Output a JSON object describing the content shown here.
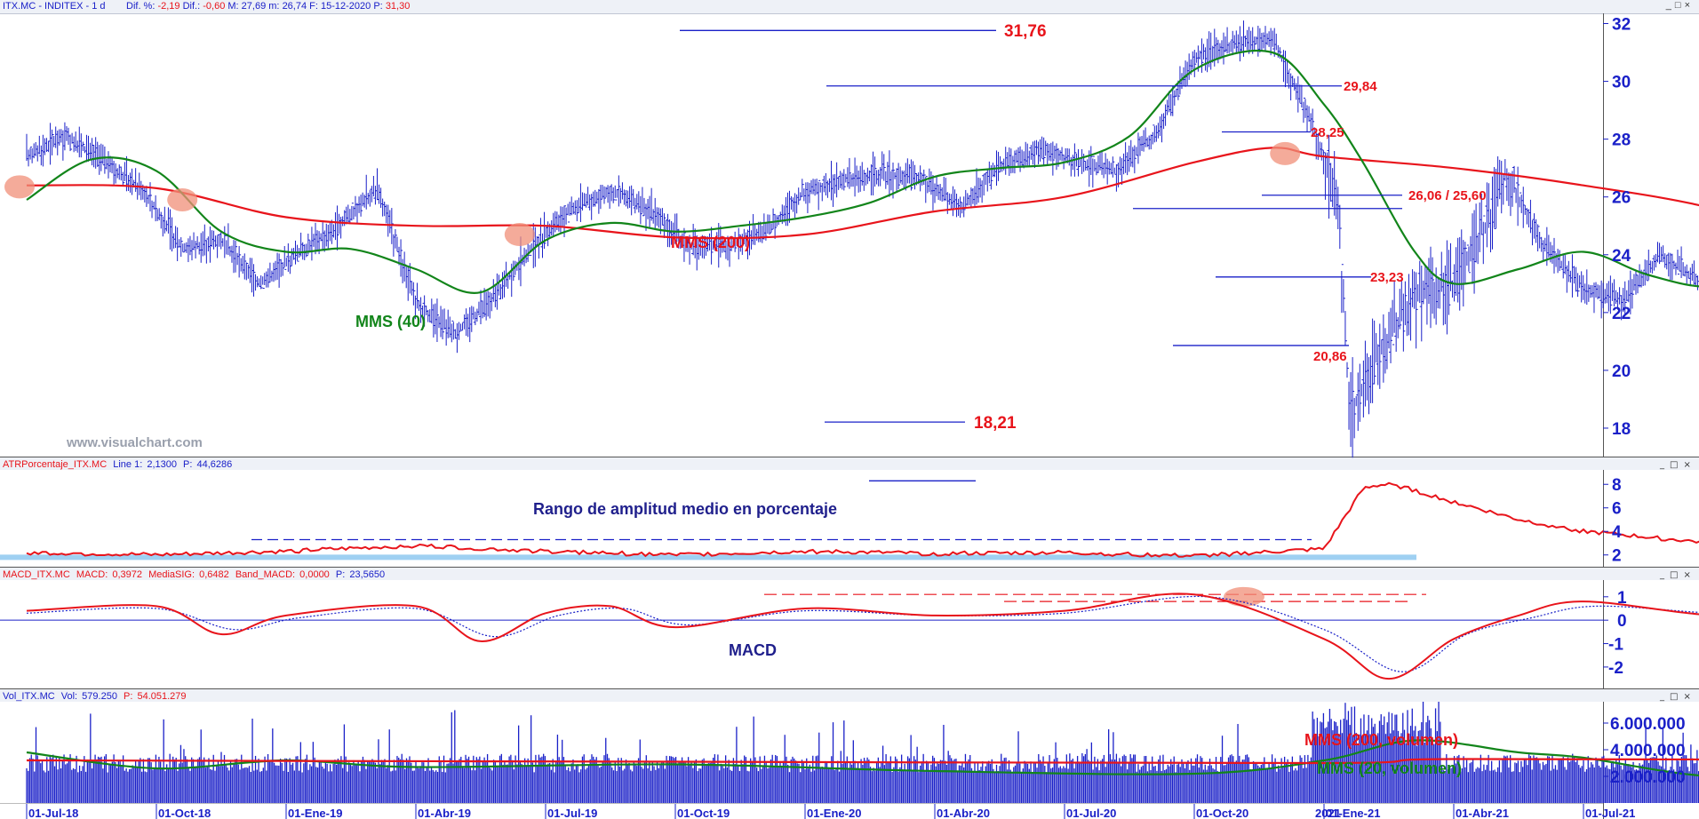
{
  "panels": {
    "price": {
      "header": {
        "symbol": "ITX.MC - INDITEX - 1 d",
        "diff_pct_label": "Dif. %:",
        "diff_pct": "-2,19",
        "diff_label": "Dif.:",
        "diff": "-0,60",
        "max_label": "M:",
        "max": "27,69",
        "min_label": "m:",
        "min": "26,74",
        "date_label": "F:",
        "date": "15-12-2020",
        "price_label": "P:",
        "price": "31,30"
      },
      "watermark": "www.visualchart.com",
      "labels": {
        "mms200": "MMS (200)",
        "mms40": "MMS (40)"
      }
    },
    "atr": {
      "header": {
        "name": "ATRPorcentaje_ITX.MC",
        "line_label": "Line 1:",
        "line_value": "2,1300",
        "p_label": "P:",
        "p_value": "44,6286"
      },
      "title": "Rango de amplitud medio en porcentaje"
    },
    "macd": {
      "header": {
        "name": "MACD_ITX.MC",
        "macd_label": "MACD:",
        "macd_value": "0,3972",
        "sig_label": "MediaSIG:",
        "sig_value": "0,6482",
        "band_label": "Band_MACD:",
        "band_value": "0,0000",
        "p_label": "P:",
        "p_value": "23,5650"
      },
      "title": "MACD"
    },
    "volume": {
      "header": {
        "name": "Vol_ITX.MC",
        "vol_label": "Vol:",
        "vol_value": "579.250",
        "p_label": "P:",
        "p_value": "54.051.279"
      },
      "labels": {
        "mms200": "MMS (200, volumen)",
        "mms20": "MMS (20, volumen)"
      }
    }
  },
  "window_controls": [
    "_",
    "□",
    "×"
  ],
  "colors": {
    "price_bars": "#1a20c8",
    "mms200": "#e8141b",
    "mms40": "#12851a",
    "axis_text": "#1a20c8",
    "annotation_red": "#e8141b",
    "annotation_navy": "#1f1f8c",
    "highlight": "#f08f78",
    "atr_band": "#9fd0f2"
  },
  "chart_data": [
    {
      "type": "line",
      "title": "",
      "x_ticks": [
        "01-Jul-18",
        "01-Oct-18",
        "01-Ene-19",
        "01-Abr-19",
        "01-Jul-19",
        "01-Oct-19",
        "01-Ene-20",
        "01-Abr-20",
        "01-Jul-20",
        "01-Oct-20",
        "01-Ene-21",
        "01-Abr-21",
        "01-Jul-21"
      ],
      "x_subtick": "2021",
      "ylim": [
        17.2,
        32.2
      ],
      "y_ticks": [
        18,
        20,
        22,
        24,
        26,
        28,
        30,
        32
      ],
      "series": [
        {
          "name": "",
          "style": "ohlc-bars",
          "points": [
            [
              0,
              27.4
            ],
            [
              0.3,
              28.1
            ],
            [
              0.6,
              27.2
            ],
            [
              0.9,
              26.2
            ],
            [
              1.2,
              24.2
            ],
            [
              1.5,
              24.5
            ],
            [
              1.8,
              23.0
            ],
            [
              2.1,
              24.1
            ],
            [
              2.4,
              25.0
            ],
            [
              2.7,
              26.3
            ],
            [
              3.0,
              22.3
            ],
            [
              3.3,
              21.3
            ],
            [
              3.6,
              22.5
            ],
            [
              3.9,
              24.3
            ],
            [
              4.2,
              25.6
            ],
            [
              4.5,
              26.2
            ],
            [
              4.8,
              25.6
            ],
            [
              5.1,
              24.3
            ],
            [
              5.4,
              24.3
            ],
            [
              5.7,
              24.8
            ],
            [
              6.0,
              26.2
            ],
            [
              6.3,
              26.6
            ],
            [
              6.6,
              26.8
            ],
            [
              6.9,
              26.6
            ],
            [
              7.2,
              25.6
            ],
            [
              7.5,
              27.1
            ],
            [
              7.8,
              27.6
            ],
            [
              8.1,
              27.2
            ],
            [
              8.4,
              26.9
            ],
            [
              8.7,
              28.2
            ],
            [
              9.0,
              30.8
            ],
            [
              9.3,
              31.3
            ],
            [
              9.6,
              31.5
            ],
            [
              9.9,
              28.6
            ],
            [
              10.1,
              26.0
            ],
            [
              10.2,
              18.5
            ],
            [
              10.4,
              20.5
            ],
            [
              10.7,
              22.5
            ],
            [
              11.0,
              23.0
            ],
            [
              11.3,
              25.5
            ],
            [
              11.4,
              26.8
            ],
            [
              11.7,
              24.3
            ],
            [
              12.0,
              22.8
            ],
            [
              12.3,
              22.4
            ],
            [
              12.6,
              24.0
            ],
            [
              12.9,
              23.0
            ],
            [
              13.2,
              25.6
            ],
            [
              13.5,
              24.0
            ],
            [
              13.8,
              23.5
            ],
            [
              13.9,
              21.1
            ],
            [
              14.1,
              27.5
            ],
            [
              14.4,
              28.2
            ],
            [
              14.6,
              27.6
            ],
            [
              14.75,
              27.2
            ]
          ]
        },
        {
          "name": "MMS (200)",
          "points": [
            [
              0,
              26.4
            ],
            [
              1,
              26.3
            ],
            [
              2,
              25.3
            ],
            [
              3,
              25.0
            ],
            [
              4,
              25.0
            ],
            [
              5,
              24.6
            ],
            [
              6,
              24.7
            ],
            [
              7,
              25.5
            ],
            [
              8,
              26.0
            ],
            [
              9,
              27.2
            ],
            [
              9.6,
              27.7
            ],
            [
              10,
              27.4
            ],
            [
              11,
              27.0
            ],
            [
              12,
              26.4
            ],
            [
              13,
              25.6
            ],
            [
              14,
              24.2
            ],
            [
              14.75,
              23.8
            ]
          ]
        },
        {
          "name": "MMS (40)",
          "points": [
            [
              0,
              25.9
            ],
            [
              0.5,
              27.3
            ],
            [
              1,
              26.9
            ],
            [
              1.5,
              24.8
            ],
            [
              2,
              24.1
            ],
            [
              2.5,
              24.2
            ],
            [
              3,
              23.5
            ],
            [
              3.5,
              22.7
            ],
            [
              4,
              24.5
            ],
            [
              4.5,
              25.1
            ],
            [
              5,
              24.8
            ],
            [
              5.5,
              25.0
            ],
            [
              6,
              25.3
            ],
            [
              6.5,
              25.8
            ],
            [
              7,
              26.7
            ],
            [
              7.5,
              27.0
            ],
            [
              8,
              27.2
            ],
            [
              8.5,
              28.1
            ],
            [
              9,
              30.4
            ],
            [
              9.6,
              31.0
            ],
            [
              10,
              29.2
            ],
            [
              10.3,
              27.2
            ],
            [
              10.7,
              24.1
            ],
            [
              11,
              23.0
            ],
            [
              11.5,
              23.5
            ],
            [
              12,
              24.1
            ],
            [
              12.5,
              23.3
            ],
            [
              13,
              22.9
            ],
            [
              13.5,
              23.6
            ],
            [
              14,
              23.4
            ],
            [
              14.3,
              24.8
            ],
            [
              14.75,
              25.7
            ]
          ]
        }
      ],
      "annotations": [
        {
          "text": "31,76",
          "value": 31.76
        },
        {
          "text": "29,84",
          "value": 29.84
        },
        {
          "text": "28,25",
          "value": 28.25
        },
        {
          "text": "26,06 / 25,60",
          "value": 26.06
        },
        {
          "text": "23,23",
          "value": 23.23
        },
        {
          "text": "20,86",
          "value": 20.86
        },
        {
          "text": "18,21",
          "value": 18.21
        }
      ]
    },
    {
      "type": "line",
      "title": "",
      "ylim": [
        1.3,
        9.0
      ],
      "y_ticks": [
        2,
        4,
        6,
        8
      ],
      "series": [
        {
          "name": "",
          "points": [
            [
              0,
              2.2
            ],
            [
              1,
              2.0
            ],
            [
              2,
              2.3
            ],
            [
              3,
              2.8
            ],
            [
              4,
              2.3
            ],
            [
              5,
              2.0
            ],
            [
              6,
              2.3
            ],
            [
              7,
              2.1
            ],
            [
              8,
              2.2
            ],
            [
              9,
              1.9
            ],
            [
              10,
              2.5
            ],
            [
              10.3,
              7.6
            ],
            [
              10.5,
              8.1
            ],
            [
              11,
              6.5
            ],
            [
              11.5,
              5.0
            ],
            [
              12,
              4.0
            ],
            [
              13,
              3.0
            ],
            [
              13.5,
              2.6
            ],
            [
              14,
              3.2
            ],
            [
              14.3,
              2.6
            ],
            [
              14.75,
              2.2
            ]
          ]
        }
      ],
      "levels": [
        3.3,
        8.3
      ]
    },
    {
      "type": "line",
      "title": "",
      "ylim": [
        -2.8,
        1.6
      ],
      "y_ticks": [
        -2,
        -1,
        0,
        1
      ],
      "series": [
        {
          "name": "MACD",
          "points": [
            [
              0,
              0.4
            ],
            [
              1,
              0.6
            ],
            [
              1.5,
              -0.6
            ],
            [
              2,
              0.2
            ],
            [
              3,
              0.6
            ],
            [
              3.5,
              -0.9
            ],
            [
              4,
              0.3
            ],
            [
              4.5,
              0.6
            ],
            [
              5,
              -0.3
            ],
            [
              6,
              0.5
            ],
            [
              7,
              0.2
            ],
            [
              8,
              0.4
            ],
            [
              9,
              1.1
            ],
            [
              10,
              -0.8
            ],
            [
              10.5,
              -2.5
            ],
            [
              11,
              -0.8
            ],
            [
              11.5,
              0.2
            ],
            [
              12,
              0.8
            ],
            [
              13,
              0.2
            ],
            [
              14,
              0.1
            ],
            [
              14.3,
              1.2
            ],
            [
              14.75,
              0.4
            ]
          ]
        },
        {
          "name": "MediaSIG",
          "points": [
            [
              0,
              0.3
            ],
            [
              1,
              0.5
            ],
            [
              1.6,
              -0.4
            ],
            [
              2.1,
              0.1
            ],
            [
              3,
              0.5
            ],
            [
              3.6,
              -0.7
            ],
            [
              4.1,
              0.2
            ],
            [
              4.6,
              0.5
            ],
            [
              5.1,
              -0.2
            ],
            [
              6,
              0.4
            ],
            [
              7,
              0.2
            ],
            [
              8,
              0.3
            ],
            [
              9.1,
              1.0
            ],
            [
              10,
              -0.4
            ],
            [
              10.6,
              -2.2
            ],
            [
              11.1,
              -0.6
            ],
            [
              11.6,
              0.1
            ],
            [
              12.1,
              0.6
            ],
            [
              13,
              0.3
            ],
            [
              14,
              0.1
            ],
            [
              14.4,
              1.0
            ],
            [
              14.75,
              0.6
            ]
          ]
        }
      ],
      "levels": [
        1.1,
        0.8
      ]
    },
    {
      "type": "bar",
      "title": "",
      "ylim": [
        0,
        7600000
      ],
      "y_ticks": [
        "2.000.000",
        "4.000.000",
        "6.000.000"
      ],
      "y_tick_values": [
        2000000,
        4000000,
        6000000
      ],
      "series": [
        {
          "name": "MMS (200, volumen)",
          "points": [
            [
              0,
              3200000
            ],
            [
              5,
              3100000
            ],
            [
              10,
              3000000
            ],
            [
              11,
              3300000
            ],
            [
              14.75,
              3200000
            ]
          ]
        },
        {
          "name": "MMS (20, volumen)",
          "points": [
            [
              0,
              3800000
            ],
            [
              1,
              2600000
            ],
            [
              2,
              3200000
            ],
            [
              3,
              2700000
            ],
            [
              5,
              2900000
            ],
            [
              7,
              2400000
            ],
            [
              9,
              2200000
            ],
            [
              10,
              3200000
            ],
            [
              10.7,
              4700000
            ],
            [
              11.5,
              3800000
            ],
            [
              12,
              3400000
            ],
            [
              13,
              2000000
            ],
            [
              14,
              2600000
            ],
            [
              14.3,
              3700000
            ],
            [
              14.75,
              3100000
            ]
          ]
        }
      ]
    }
  ]
}
